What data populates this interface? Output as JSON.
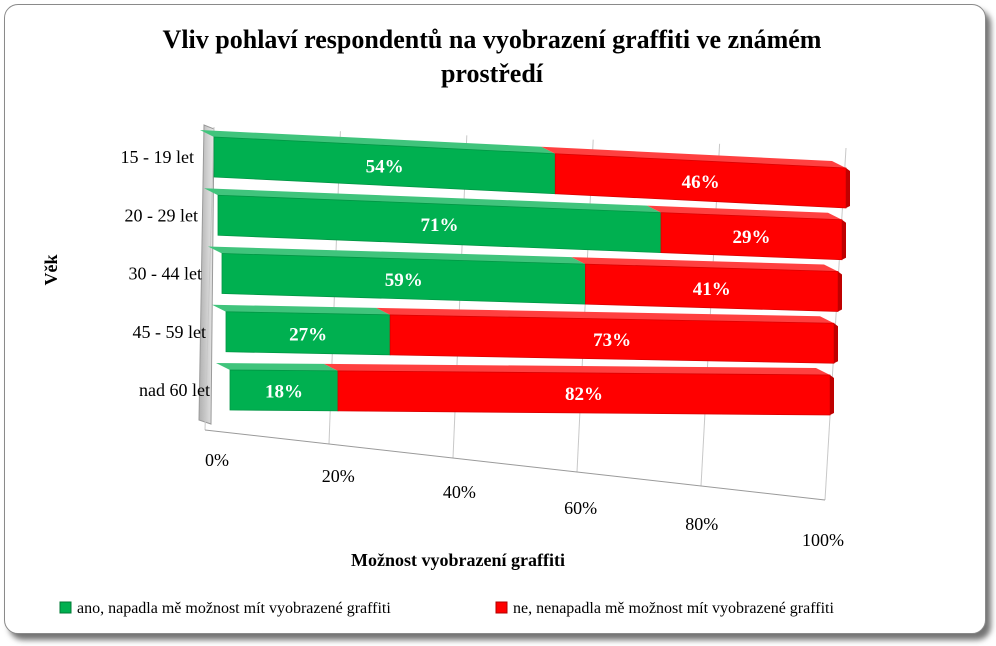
{
  "chart_data": {
    "type": "bar",
    "orientation": "horizontal",
    "stacked": "percent",
    "title_line1": "Vliv pohlaví respondentů na vyobrazení graffiti ve známém",
    "title_line2": "prostředí",
    "xlabel": "Možnost vyobrazení graffiti",
    "ylabel": "Věk",
    "categories": [
      "15 - 19 let",
      "20 - 29 let",
      "30 - 44 let",
      "45 - 59 let",
      "nad 60 let"
    ],
    "series": [
      {
        "name": "ano, napadla mě možnost mít vyobrazené graffiti",
        "values": [
          54,
          71,
          59,
          27,
          18
        ],
        "color": "#00b050"
      },
      {
        "name": "ne, nenapadla mě možnost mít vyobrazené graffiti",
        "values": [
          46,
          29,
          41,
          73,
          82
        ],
        "color": "#ff0000"
      }
    ],
    "value_labels": [
      [
        "54%",
        "71%",
        "59%",
        "27%",
        "18%"
      ],
      [
        "46%",
        "29%",
        "41%",
        "73%",
        "82%"
      ]
    ],
    "ticks": [
      "0%",
      "20%",
      "40%",
      "60%",
      "80%",
      "100%"
    ],
    "xlim": [
      0,
      100
    ],
    "grid": true,
    "legend_position": "bottom"
  }
}
